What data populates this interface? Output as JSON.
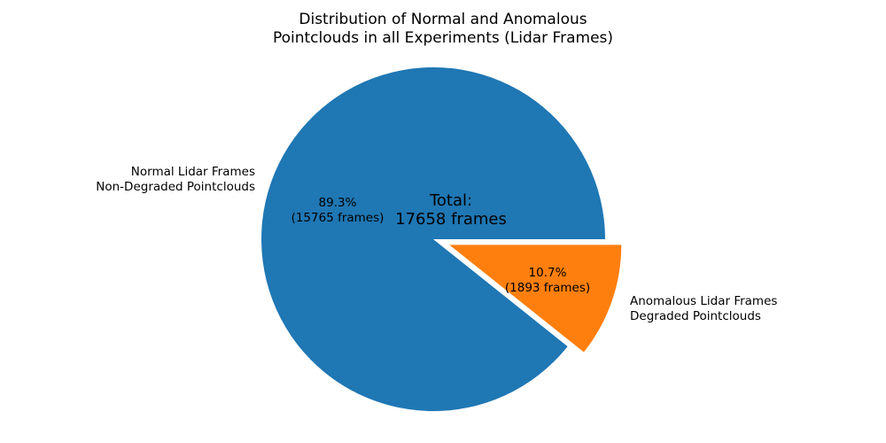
{
  "chart_data": {
    "type": "pie",
    "title": "Distribution of Normal and Anomalous\nPointclouds in all Experiments (Lidar Frames)",
    "total_label": "Total:\n17658 frames",
    "total_frames": 17658,
    "start_angle": 0,
    "direction": "counterclockwise",
    "background": "#ffffff",
    "text_color": "#000000",
    "slices": [
      {
        "name": "normal",
        "label": "Normal Lidar Frames\nNon-Degraded Pointclouds",
        "value": 15765,
        "pct": 89.3,
        "pct_label": "89.3%\n(15765 frames)",
        "color": "#1f77b4",
        "explode": 0
      },
      {
        "name": "anomalous",
        "label": "Anomalous Lidar Frames\nDegraded Pointclouds",
        "value": 1893,
        "pct": 10.7,
        "pct_label": "10.7%\n(1893 frames)",
        "color": "#ff7f0e",
        "explode": 0.1
      }
    ]
  }
}
